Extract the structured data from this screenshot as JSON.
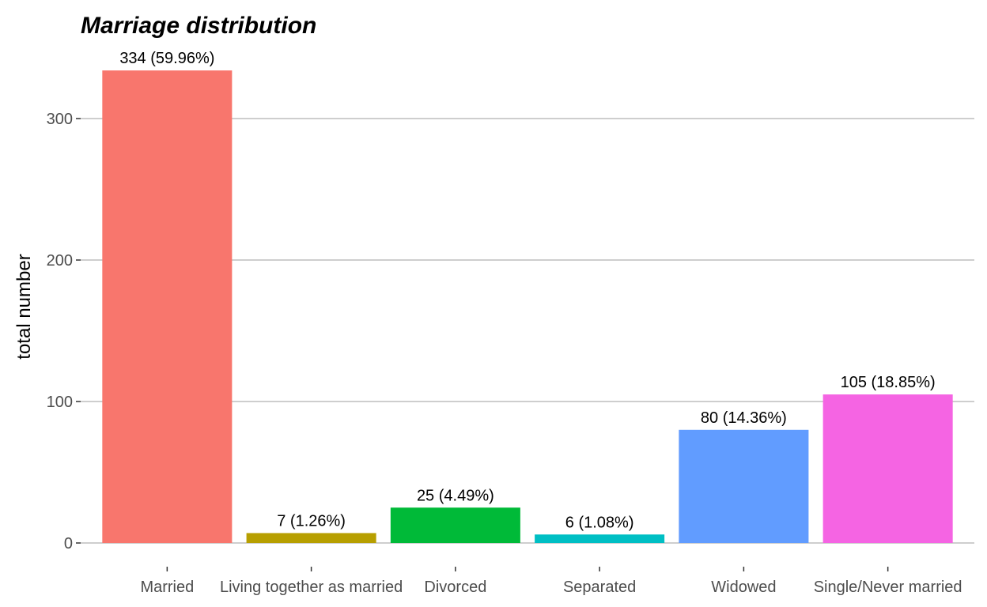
{
  "chart_data": {
    "type": "bar",
    "title": "Marriage distribution",
    "xlabel": "",
    "ylabel": "total number",
    "categories": [
      "Married",
      "Living together as married",
      "Divorced",
      "Separated",
      "Widowed",
      "Single/Never married"
    ],
    "values": [
      334,
      7,
      25,
      6,
      80,
      105
    ],
    "data_labels": [
      "334 (59.96%)",
      "7 (1.26%)",
      "25 (4.49%)",
      "6 (1.08%)",
      "80 (14.36%)",
      "105 (18.85%)"
    ],
    "colors": [
      "#F8766D",
      "#B79F00",
      "#00BA38",
      "#00BFC4",
      "#619CFF",
      "#F564E3"
    ],
    "yticks": [
      0,
      100,
      200,
      300
    ],
    "ylim": [
      0,
      351
    ],
    "grid": "horizontal",
    "legend": "none"
  }
}
